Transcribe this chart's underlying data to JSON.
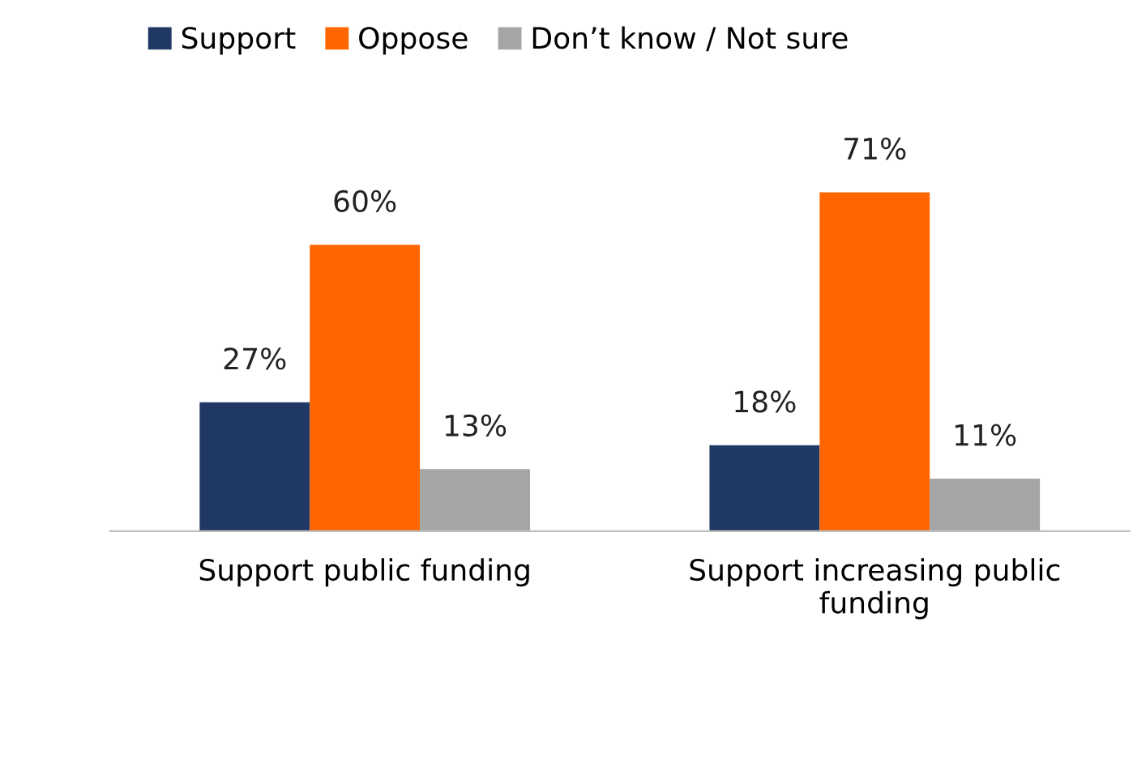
{
  "chart_data": {
    "type": "bar",
    "categories": [
      "Support public funding",
      "Support increasing public funding"
    ],
    "series": [
      {
        "name": "Support",
        "color": "#1f3864",
        "values": [
          27,
          18
        ],
        "value_labels": [
          "27%",
          "18%"
        ]
      },
      {
        "name": "Oppose",
        "color": "#ff6600",
        "values": [
          60,
          71
        ],
        "value_labels": [
          "60%",
          "71%"
        ]
      },
      {
        "name": "Don’t know / Not sure",
        "color": "#a5a5a5",
        "values": [
          13,
          11
        ],
        "value_labels": [
          "13%",
          "11%"
        ]
      }
    ],
    "legend": "top",
    "grid": false
  }
}
